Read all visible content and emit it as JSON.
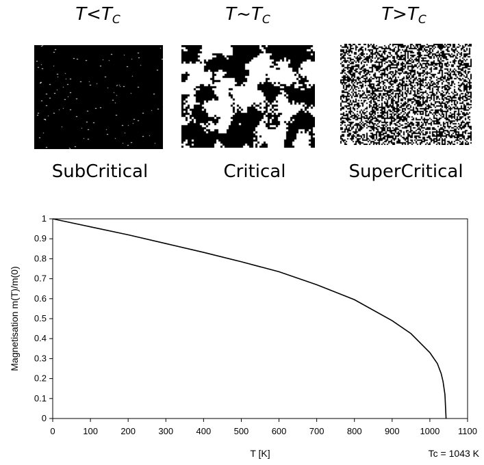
{
  "panels": [
    {
      "title_var": "T",
      "title_op": "<",
      "title_sub_base": "T",
      "title_sub": "C",
      "label": "SubCritical",
      "black_fraction": 0.985
    },
    {
      "title_var": "T",
      "title_op": "~",
      "title_sub_base": "T",
      "title_sub": "C",
      "label": "Critical",
      "black_fraction": 0.5
    },
    {
      "title_var": "T",
      "title_op": ">",
      "title_sub_base": "T",
      "title_sub": "C",
      "label": "SuperCritical",
      "black_fraction": 0.5
    }
  ],
  "chart_data": {
    "type": "line",
    "xlabel": "T [K]",
    "ylabel": "Magnetisation m(T)/m(0)",
    "annotation": "Tc = 1043 K",
    "tc": 1043,
    "xlim": [
      0,
      1100
    ],
    "ylim": [
      0,
      1
    ],
    "xticks": [
      "0",
      "100",
      "200",
      "300",
      "400",
      "500",
      "600",
      "700",
      "800",
      "900",
      "1000",
      "1100"
    ],
    "yticks": [
      "0",
      "0.1",
      "0.2",
      "0.3",
      "0.4",
      "0.5",
      "0.6",
      "0.7",
      "0.8",
      "0.9",
      "1"
    ],
    "grid": false,
    "legend": "none",
    "series": [
      {
        "x": [
          0,
          100,
          200,
          300,
          400,
          500,
          600,
          700,
          800,
          900,
          950,
          1000,
          1020,
          1030,
          1035,
          1040,
          1043
        ],
        "values": [
          1.0,
          0.96,
          0.92,
          0.876,
          0.832,
          0.785,
          0.735,
          0.67,
          0.595,
          0.49,
          0.425,
          0.33,
          0.275,
          0.225,
          0.185,
          0.12,
          0.0
        ]
      }
    ]
  }
}
